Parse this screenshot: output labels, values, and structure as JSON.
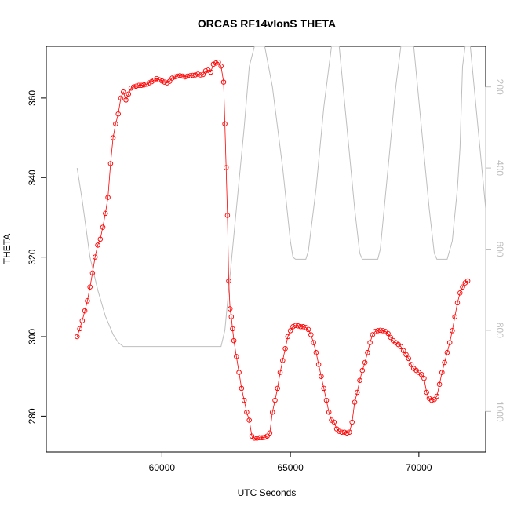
{
  "chart_data": {
    "type": "scatter",
    "title": "ORCAS RF14vlonS THETA",
    "xlabel": "UTC Seconds",
    "ylabel": "THETA",
    "xlim": [
      55500,
      72600
    ],
    "ylim": [
      271,
      373
    ],
    "x_ticks": [
      60000,
      65000,
      70000
    ],
    "y_ticks": [
      280,
      300,
      320,
      340,
      360
    ],
    "y2_ticks": [
      200,
      400,
      600,
      800,
      1000
    ],
    "y2_note": "secondary right axis (pressure), inverted",
    "y2lim": [
      100,
      1100
    ],
    "grid": false,
    "colors": {
      "theta": "#ff0000",
      "pressure": "#bebebe",
      "axis": "#000000",
      "y2_axis": "#bebebe"
    },
    "series": [
      {
        "role": "theta",
        "style": "open-circle markers with thin connecting line",
        "points": [
          [
            56700,
            300
          ],
          [
            56800,
            302
          ],
          [
            56900,
            304
          ],
          [
            57000,
            306.5
          ],
          [
            57100,
            309
          ],
          [
            57200,
            312.5
          ],
          [
            57300,
            316
          ],
          [
            57400,
            320
          ],
          [
            57500,
            323
          ],
          [
            57600,
            324.5
          ],
          [
            57700,
            327.5
          ],
          [
            57800,
            331
          ],
          [
            57900,
            335
          ],
          [
            58000,
            343.5
          ],
          [
            58100,
            350
          ],
          [
            58200,
            353.5
          ],
          [
            58300,
            356
          ],
          [
            58400,
            360
          ],
          [
            58500,
            361.5
          ],
          [
            58600,
            359.5
          ],
          [
            58700,
            361
          ],
          [
            58800,
            362.5
          ],
          [
            58900,
            362.8
          ],
          [
            59000,
            363
          ],
          [
            59100,
            363.2
          ],
          [
            59200,
            363.2
          ],
          [
            59300,
            363.3
          ],
          [
            59400,
            363.5
          ],
          [
            59500,
            363.8
          ],
          [
            59600,
            364.1
          ],
          [
            59700,
            364.5
          ],
          [
            59800,
            364.9
          ],
          [
            59900,
            364.6
          ],
          [
            60000,
            364.3
          ],
          [
            60100,
            364
          ],
          [
            60200,
            363.8
          ],
          [
            60300,
            364.2
          ],
          [
            60400,
            365
          ],
          [
            60500,
            365.3
          ],
          [
            60600,
            365.5
          ],
          [
            60700,
            365.6
          ],
          [
            60800,
            365.5
          ],
          [
            60900,
            365.3
          ],
          [
            61000,
            365.5
          ],
          [
            61100,
            365.6
          ],
          [
            61200,
            365.7
          ],
          [
            61300,
            365.8
          ],
          [
            61400,
            366
          ],
          [
            61500,
            365.8
          ],
          [
            61600,
            365.9
          ],
          [
            61700,
            366.8
          ],
          [
            61800,
            367
          ],
          [
            61900,
            366.5
          ],
          [
            62000,
            368.5
          ],
          [
            62100,
            368.8
          ],
          [
            62200,
            369
          ],
          [
            62300,
            368
          ],
          [
            62400,
            364
          ],
          [
            62450,
            353.5
          ],
          [
            62500,
            342.5
          ],
          [
            62550,
            330.5
          ],
          [
            62600,
            314
          ],
          [
            62650,
            307
          ],
          [
            62700,
            305
          ],
          [
            62750,
            302
          ],
          [
            62800,
            299
          ],
          [
            62900,
            295
          ],
          [
            63000,
            291
          ],
          [
            63100,
            287
          ],
          [
            63200,
            284
          ],
          [
            63300,
            281
          ],
          [
            63400,
            279
          ],
          [
            63500,
            275
          ],
          [
            63600,
            274.5
          ],
          [
            63700,
            274.5
          ],
          [
            63800,
            274.6
          ],
          [
            63900,
            274.6
          ],
          [
            64000,
            274.7
          ],
          [
            64100,
            275
          ],
          [
            64200,
            275.8
          ],
          [
            64300,
            281
          ],
          [
            64400,
            284
          ],
          [
            64500,
            287
          ],
          [
            64600,
            291
          ],
          [
            64700,
            294
          ],
          [
            64800,
            297
          ],
          [
            64900,
            300
          ],
          [
            65000,
            301.5
          ],
          [
            65100,
            302.5
          ],
          [
            65200,
            302.8
          ],
          [
            65300,
            302.7
          ],
          [
            65400,
            302.5
          ],
          [
            65500,
            302.5
          ],
          [
            65600,
            302.3
          ],
          [
            65700,
            301.8
          ],
          [
            65800,
            300.5
          ],
          [
            65900,
            298.5
          ],
          [
            66000,
            296
          ],
          [
            66100,
            293
          ],
          [
            66200,
            290
          ],
          [
            66300,
            287
          ],
          [
            66400,
            284
          ],
          [
            66500,
            281
          ],
          [
            66600,
            279
          ],
          [
            66700,
            278.5
          ],
          [
            66800,
            276.8
          ],
          [
            66900,
            276.2
          ],
          [
            67000,
            276
          ],
          [
            67100,
            276
          ],
          [
            67200,
            275.8
          ],
          [
            67300,
            276
          ],
          [
            67400,
            278.5
          ],
          [
            67500,
            283.5
          ],
          [
            67600,
            286
          ],
          [
            67700,
            289
          ],
          [
            67800,
            291.5
          ],
          [
            67900,
            293.5
          ],
          [
            68000,
            296
          ],
          [
            68100,
            298.5
          ],
          [
            68200,
            300.5
          ],
          [
            68300,
            301.3
          ],
          [
            68400,
            301.5
          ],
          [
            68500,
            301.6
          ],
          [
            68600,
            301.5
          ],
          [
            68700,
            301.3
          ],
          [
            68800,
            300.8
          ],
          [
            68900,
            299.8
          ],
          [
            69000,
            299
          ],
          [
            69100,
            298.5
          ],
          [
            69200,
            298
          ],
          [
            69300,
            297.5
          ],
          [
            69400,
            296.5
          ],
          [
            69500,
            295.5
          ],
          [
            69600,
            294.5
          ],
          [
            69700,
            293
          ],
          [
            69800,
            292
          ],
          [
            69900,
            291.5
          ],
          [
            70000,
            291
          ],
          [
            70100,
            290.5
          ],
          [
            70200,
            289.5
          ],
          [
            70300,
            286
          ],
          [
            70400,
            284.5
          ],
          [
            70500,
            284
          ],
          [
            70600,
            284.2
          ],
          [
            70700,
            285
          ],
          [
            70800,
            288
          ],
          [
            70900,
            291
          ],
          [
            71000,
            293.5
          ],
          [
            71100,
            296
          ],
          [
            71200,
            298.5
          ],
          [
            71300,
            301.5
          ],
          [
            71400,
            305
          ],
          [
            71500,
            308.5
          ],
          [
            71600,
            311
          ],
          [
            71700,
            312.5
          ],
          [
            71800,
            313.5
          ],
          [
            71900,
            314
          ]
        ]
      },
      {
        "role": "pressure",
        "axis": "y2",
        "style": "thin grey line",
        "points": [
          [
            56700,
            400
          ],
          [
            56900,
            480
          ],
          [
            57200,
            620
          ],
          [
            57500,
            700
          ],
          [
            57800,
            765
          ],
          [
            58100,
            810
          ],
          [
            58300,
            830
          ],
          [
            58500,
            840
          ],
          [
            59000,
            840
          ],
          [
            60000,
            840
          ],
          [
            61000,
            840
          ],
          [
            62000,
            840
          ],
          [
            62300,
            840
          ],
          [
            62450,
            800
          ],
          [
            62600,
            700
          ],
          [
            62900,
            500
          ],
          [
            63200,
            300
          ],
          [
            63400,
            150
          ],
          [
            63600,
            100
          ],
          [
            64000,
            100
          ],
          [
            64300,
            200
          ],
          [
            64700,
            400
          ],
          [
            65000,
            580
          ],
          [
            65100,
            620
          ],
          [
            65200,
            625
          ],
          [
            65600,
            625
          ],
          [
            65700,
            605
          ],
          [
            66000,
            450
          ],
          [
            66300,
            250
          ],
          [
            66600,
            100
          ],
          [
            66900,
            100
          ],
          [
            67200,
            300
          ],
          [
            67500,
            500
          ],
          [
            67700,
            610
          ],
          [
            67800,
            625
          ],
          [
            68400,
            625
          ],
          [
            68500,
            600
          ],
          [
            68800,
            400
          ],
          [
            69100,
            200
          ],
          [
            69300,
            100
          ],
          [
            69800,
            100
          ],
          [
            70100,
            300
          ],
          [
            70400,
            500
          ],
          [
            70600,
            610
          ],
          [
            70700,
            625
          ],
          [
            71100,
            625
          ],
          [
            71300,
            580
          ],
          [
            71500,
            450
          ],
          [
            71600,
            350
          ],
          [
            71700,
            150
          ],
          [
            71800,
            100
          ],
          [
            72000,
            100
          ],
          [
            72300,
            300
          ],
          [
            72600,
            500
          ]
        ]
      }
    ]
  }
}
